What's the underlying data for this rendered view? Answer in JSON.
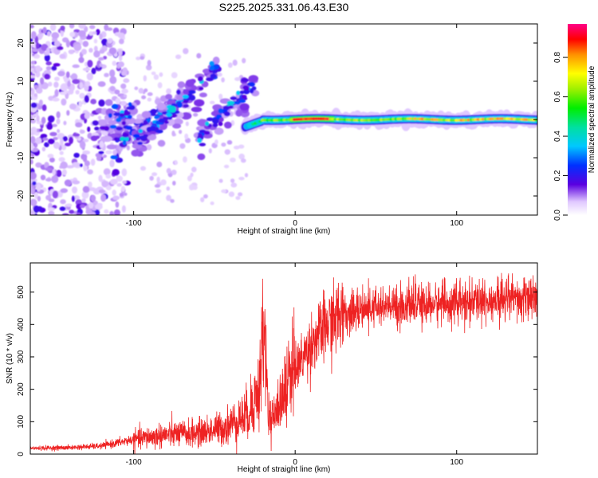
{
  "title": "S225.2025.331.06.43.E30",
  "chart_data": [
    {
      "type": "heatmap",
      "name": "spectrogram",
      "xlabel": "Height of straight line (km)",
      "ylabel": "Frequency (Hz)",
      "xlim": [
        -164,
        150
      ],
      "ylim": [
        -25,
        25
      ],
      "xticks": [
        -100,
        0,
        100
      ],
      "yticks": [
        -20,
        -10,
        0,
        10,
        20
      ],
      "colorbar": {
        "label": "Normalized spectral amplitude",
        "range": [
          0,
          0.97
        ],
        "ticks": [
          0.0,
          0.2,
          0.4,
          0.6,
          0.8
        ]
      },
      "features": [
        {
          "name": "noise-region",
          "x_range": [
            -164,
            -110
          ],
          "amplitude": 0.1
        },
        {
          "name": "streak-1",
          "x_range": [
            -112,
            -66
          ],
          "y_range": [
            -7,
            8
          ],
          "amplitude": 0.25
        },
        {
          "name": "streak-2",
          "x_range": [
            -100,
            -48
          ],
          "y_range": [
            -8,
            14
          ],
          "amplitude": 0.3
        },
        {
          "name": "streak-3",
          "x_range": [
            -60,
            -25
          ],
          "y_range": [
            -6,
            9
          ],
          "amplitude": 0.3
        },
        {
          "name": "carrier-band",
          "x_range": [
            -30,
            150
          ],
          "y_center": 0,
          "amplitude_peak": 0.97,
          "peak_x": [
            0,
            20
          ]
        }
      ]
    },
    {
      "type": "line",
      "name": "snr",
      "xlabel": "Height of straight line (km)",
      "ylabel": "SNR (10 * v/v)",
      "xlim": [
        -164,
        150
      ],
      "ylim": [
        0,
        590
      ],
      "xticks": [
        -100,
        0,
        100
      ],
      "yticks": [
        0,
        100,
        200,
        300,
        400,
        500
      ],
      "color": "#ee2222",
      "series": [
        {
          "name": "SNR envelope",
          "x": [
            -164,
            -140,
            -120,
            -100,
            -80,
            -60,
            -45,
            -30,
            -22,
            -20,
            -18,
            -16,
            -12,
            -8,
            -4,
            0,
            5,
            10,
            20,
            30,
            50,
            80,
            100,
            120,
            150
          ],
          "y": [
            18,
            20,
            25,
            45,
            60,
            65,
            80,
            120,
            200,
            400,
            280,
            110,
            140,
            180,
            230,
            260,
            300,
            340,
            400,
            430,
            450,
            460,
            465,
            470,
            475
          ]
        }
      ]
    }
  ]
}
